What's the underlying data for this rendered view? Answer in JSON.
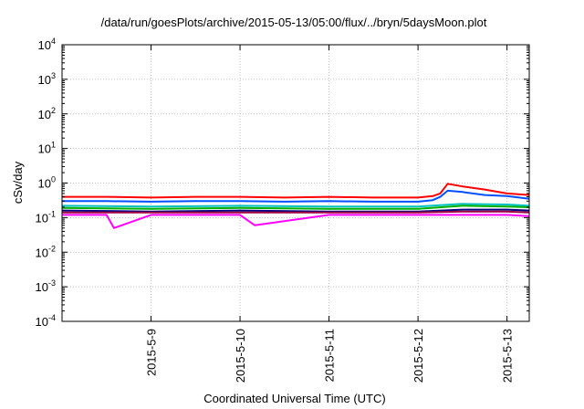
{
  "chart_data": {
    "type": "line",
    "title": "/data/run/goesPlots/archive/2015-05-13/05:00/flux/../bryn/5daysMoon.plot",
    "xlabel": "Coordinated Universal Time (UTC)",
    "ylabel": "cSv/day",
    "yscale": "log",
    "ylim": [
      0.0001,
      10000
    ],
    "xlim": [
      "2015-05-08 00:00",
      "2015-05-13 06:00"
    ],
    "grid": true,
    "y_ticks": [
      {
        "value": 0.0001,
        "label": "10",
        "exp": "-4"
      },
      {
        "value": 0.001,
        "label": "10",
        "exp": "-3"
      },
      {
        "value": 0.01,
        "label": "10",
        "exp": "-2"
      },
      {
        "value": 0.1,
        "label": "10",
        "exp": "-1"
      },
      {
        "value": 1,
        "label": "10",
        "exp": "0"
      },
      {
        "value": 10,
        "label": "10",
        "exp": "1"
      },
      {
        "value": 100,
        "label": "10",
        "exp": "2"
      },
      {
        "value": 1000,
        "label": "10",
        "exp": "3"
      },
      {
        "value": 10000,
        "label": "10",
        "exp": "4"
      }
    ],
    "x_ticks": [
      {
        "value": "2015-05-09 00:00",
        "label": "2015-5-9"
      },
      {
        "value": "2015-05-10 00:00",
        "label": "2015-5-10"
      },
      {
        "value": "2015-05-11 00:00",
        "label": "2015-5-11"
      },
      {
        "value": "2015-05-12 00:00",
        "label": "2015-5-12"
      },
      {
        "value": "2015-05-13 00:00",
        "label": "2015-5-13"
      }
    ],
    "series": [
      {
        "color": "#ff0000",
        "x": [
          "2015-05-08 00:00",
          "2015-05-08 12:00",
          "2015-05-09 00:00",
          "2015-05-09 12:00",
          "2015-05-10 00:00",
          "2015-05-10 12:00",
          "2015-05-11 00:00",
          "2015-05-11 12:00",
          "2015-05-12 00:00",
          "2015-05-12 04:00",
          "2015-05-12 06:00",
          "2015-05-12 08:00",
          "2015-05-12 12:00",
          "2015-05-12 18:00",
          "2015-05-13 00:00",
          "2015-05-13 06:00"
        ],
        "values": [
          0.4,
          0.4,
          0.38,
          0.4,
          0.4,
          0.38,
          0.4,
          0.38,
          0.38,
          0.42,
          0.5,
          0.95,
          0.8,
          0.65,
          0.5,
          0.45
        ]
      },
      {
        "color": "#0050ff",
        "x": [
          "2015-05-08 00:00",
          "2015-05-08 12:00",
          "2015-05-09 00:00",
          "2015-05-09 12:00",
          "2015-05-10 00:00",
          "2015-05-10 12:00",
          "2015-05-11 00:00",
          "2015-05-11 12:00",
          "2015-05-12 00:00",
          "2015-05-12 04:00",
          "2015-05-12 06:00",
          "2015-05-12 08:00",
          "2015-05-12 12:00",
          "2015-05-12 18:00",
          "2015-05-13 00:00",
          "2015-05-13 06:00"
        ],
        "values": [
          0.3,
          0.3,
          0.29,
          0.3,
          0.3,
          0.29,
          0.3,
          0.29,
          0.29,
          0.32,
          0.4,
          0.6,
          0.55,
          0.45,
          0.42,
          0.35
        ]
      },
      {
        "color": "#00c0c0",
        "x": [
          "2015-05-08 00:00",
          "2015-05-09 00:00",
          "2015-05-10 00:00",
          "2015-05-11 00:00",
          "2015-05-12 00:00",
          "2015-05-12 12:00",
          "2015-05-13 00:00",
          "2015-05-13 06:00"
        ],
        "values": [
          0.22,
          0.21,
          0.22,
          0.21,
          0.21,
          0.25,
          0.24,
          0.22
        ]
      },
      {
        "color": "#00b000",
        "x": [
          "2015-05-08 00:00",
          "2015-05-09 00:00",
          "2015-05-10 00:00",
          "2015-05-11 00:00",
          "2015-05-12 00:00",
          "2015-05-12 12:00",
          "2015-05-13 00:00",
          "2015-05-13 06:00"
        ],
        "values": [
          0.19,
          0.18,
          0.19,
          0.18,
          0.18,
          0.22,
          0.21,
          0.2
        ]
      },
      {
        "color": "#000080",
        "x": [
          "2015-05-08 00:00",
          "2015-05-09 00:00",
          "2015-05-10 00:00",
          "2015-05-11 00:00",
          "2015-05-12 00:00",
          "2015-05-12 12:00",
          "2015-05-13 00:00",
          "2015-05-13 06:00"
        ],
        "values": [
          0.16,
          0.15,
          0.16,
          0.15,
          0.15,
          0.17,
          0.17,
          0.16
        ]
      },
      {
        "color": "#a00040",
        "x": [
          "2015-05-08 00:00",
          "2015-05-09 00:00",
          "2015-05-10 00:00",
          "2015-05-11 00:00",
          "2015-05-12 00:00",
          "2015-05-12 12:00",
          "2015-05-13 00:00",
          "2015-05-13 06:00"
        ],
        "values": [
          0.14,
          0.14,
          0.14,
          0.14,
          0.14,
          0.15,
          0.15,
          0.14
        ]
      },
      {
        "color": "#ff00ff",
        "x": [
          "2015-05-08 00:00",
          "2015-05-08 12:00",
          "2015-05-08 14:00",
          "2015-05-09 00:00",
          "2015-05-10 00:00",
          "2015-05-10 04:00",
          "2015-05-11 00:00",
          "2015-05-12 00:00",
          "2015-05-13 00:00",
          "2015-05-13 06:00"
        ],
        "values": [
          0.12,
          0.12,
          0.05,
          0.12,
          0.12,
          0.06,
          0.12,
          0.12,
          0.12,
          0.11
        ]
      }
    ]
  }
}
